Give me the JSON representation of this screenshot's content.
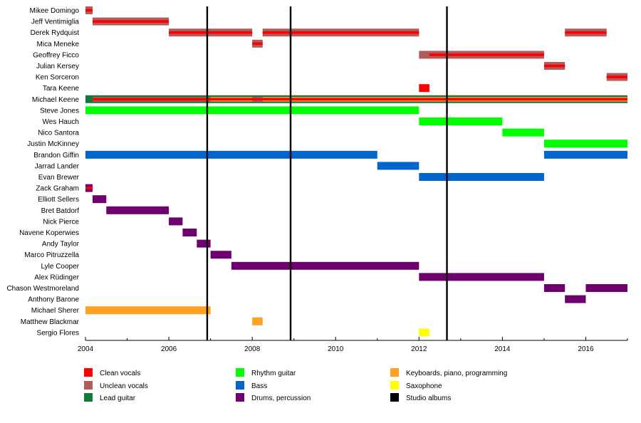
{
  "chart_data": {
    "type": "timeline",
    "xlim": [
      2004,
      2017
    ],
    "x_ticks": [
      2004,
      2006,
      2008,
      2010,
      2012,
      2014,
      2016
    ],
    "members": [
      "Mikee Domingo",
      "Jeff Ventimiglia",
      "Derek Rydquist",
      "Mica Meneke",
      "Geoffrey Ficco",
      "Julian Kersey",
      "Ken Sorceron",
      "Tara Keene",
      "Michael Keene",
      "Steve Jones",
      "Wes Hauch",
      "Nico Santora",
      "Justin McKinney",
      "Brandon Giffin",
      "Jarrad Lander",
      "Evan Brewer",
      "Zack Graham",
      "Elliott Sellers",
      "Bret Batdorf",
      "Nick Pierce",
      "Navene Koperwies",
      "Andy Taylor",
      "Marco Pitruzzella",
      "Lyle Cooper",
      "Alex Rüdinger",
      "Chason Westmoreland",
      "Anthony Barone",
      "Michael Sherer",
      "Matthew Blackmar",
      "Sergio Flores"
    ],
    "roles": [
      {
        "key": "clean",
        "label": "Clean vocals",
        "color": "#ff0000"
      },
      {
        "key": "unclean",
        "label": "Unclean vocals",
        "color": "#b35a5a"
      },
      {
        "key": "lead",
        "label": "Lead guitar",
        "color": "#117a3b"
      },
      {
        "key": "rhythm",
        "label": "Rhythm guitar",
        "color": "#00ff00"
      },
      {
        "key": "bass",
        "label": "Bass",
        "color": "#0066cc"
      },
      {
        "key": "drums",
        "label": "Drums, percussion",
        "color": "#6e016e"
      },
      {
        "key": "keys",
        "label": "Keyboards, piano, programming",
        "color": "#ffa020"
      },
      {
        "key": "sax",
        "label": "Saxophone",
        "color": "#ffff00"
      },
      {
        "key": "albums",
        "label": "Studio albums",
        "color": "#000000"
      }
    ],
    "bars": [
      {
        "member": 0,
        "role": "unclean",
        "start": 2004.0,
        "end": 2004.17
      },
      {
        "member": 0,
        "role": "clean",
        "start": 2004.0,
        "end": 2004.17,
        "inner": true
      },
      {
        "member": 1,
        "role": "unclean",
        "start": 2004.17,
        "end": 2006.0
      },
      {
        "member": 1,
        "role": "clean",
        "start": 2004.17,
        "end": 2006.0,
        "inner": true
      },
      {
        "member": 2,
        "role": "unclean",
        "start": 2006.0,
        "end": 2008.0
      },
      {
        "member": 2,
        "role": "clean",
        "start": 2006.0,
        "end": 2008.0,
        "inner": true
      },
      {
        "member": 2,
        "role": "unclean",
        "start": 2008.25,
        "end": 2012.0
      },
      {
        "member": 2,
        "role": "clean",
        "start": 2008.25,
        "end": 2012.0,
        "inner": true
      },
      {
        "member": 2,
        "role": "unclean",
        "start": 2015.5,
        "end": 2016.5
      },
      {
        "member": 2,
        "role": "clean",
        "start": 2015.5,
        "end": 2016.5,
        "inner": true
      },
      {
        "member": 3,
        "role": "unclean",
        "start": 2008.0,
        "end": 2008.25
      },
      {
        "member": 3,
        "role": "clean",
        "start": 2008.0,
        "end": 2008.25,
        "inner": true
      },
      {
        "member": 4,
        "role": "unclean",
        "start": 2012.0,
        "end": 2015.0
      },
      {
        "member": 4,
        "role": "clean",
        "start": 2012.25,
        "end": 2015.0,
        "inner": true
      },
      {
        "member": 5,
        "role": "unclean",
        "start": 2015.0,
        "end": 2015.5
      },
      {
        "member": 5,
        "role": "clean",
        "start": 2015.0,
        "end": 2015.5,
        "inner": true
      },
      {
        "member": 6,
        "role": "unclean",
        "start": 2016.5,
        "end": 2017.0
      },
      {
        "member": 6,
        "role": "clean",
        "start": 2016.5,
        "end": 2017.0,
        "inner": true
      },
      {
        "member": 7,
        "role": "clean",
        "start": 2012.0,
        "end": 2012.25
      },
      {
        "member": 8,
        "role": "lead",
        "start": 2004.0,
        "end": 2017.0
      },
      {
        "member": 8,
        "role": "unclean",
        "start": 2004.17,
        "end": 2007.0,
        "band": "mid"
      },
      {
        "member": 8,
        "role": "keys",
        "start": 2007.0,
        "end": 2017.0,
        "band": "mid"
      },
      {
        "member": 8,
        "role": "unclean",
        "start": 2008.0,
        "end": 2008.25,
        "band": "mid"
      },
      {
        "member": 8,
        "role": "clean",
        "start": 2004.17,
        "end": 2017.0,
        "inner": true
      },
      {
        "member": 9,
        "role": "rhythm",
        "start": 2004.0,
        "end": 2012.0
      },
      {
        "member": 10,
        "role": "rhythm",
        "start": 2012.0,
        "end": 2014.0
      },
      {
        "member": 11,
        "role": "rhythm",
        "start": 2014.0,
        "end": 2015.0
      },
      {
        "member": 12,
        "role": "rhythm",
        "start": 2015.0,
        "end": 2017.0
      },
      {
        "member": 13,
        "role": "bass",
        "start": 2004.0,
        "end": 2011.0
      },
      {
        "member": 13,
        "role": "bass",
        "start": 2015.0,
        "end": 2017.0
      },
      {
        "member": 14,
        "role": "bass",
        "start": 2011.0,
        "end": 2012.0
      },
      {
        "member": 15,
        "role": "bass",
        "start": 2012.0,
        "end": 2015.0
      },
      {
        "member": 16,
        "role": "drums",
        "start": 2004.0,
        "end": 2004.17
      },
      {
        "member": 16,
        "role": "clean",
        "start": 2004.0,
        "end": 2004.17,
        "inner": true
      },
      {
        "member": 17,
        "role": "drums",
        "start": 2004.17,
        "end": 2004.5
      },
      {
        "member": 18,
        "role": "drums",
        "start": 2004.5,
        "end": 2006.0
      },
      {
        "member": 19,
        "role": "drums",
        "start": 2006.0,
        "end": 2006.33
      },
      {
        "member": 20,
        "role": "drums",
        "start": 2006.33,
        "end": 2006.67
      },
      {
        "member": 21,
        "role": "drums",
        "start": 2006.67,
        "end": 2007.0
      },
      {
        "member": 22,
        "role": "drums",
        "start": 2007.0,
        "end": 2007.5
      },
      {
        "member": 23,
        "role": "drums",
        "start": 2007.5,
        "end": 2012.0
      },
      {
        "member": 24,
        "role": "drums",
        "start": 2012.0,
        "end": 2015.0
      },
      {
        "member": 25,
        "role": "drums",
        "start": 2015.0,
        "end": 2015.5
      },
      {
        "member": 25,
        "role": "drums",
        "start": 2016.0,
        "end": 2017.0
      },
      {
        "member": 26,
        "role": "drums",
        "start": 2015.5,
        "end": 2016.0
      },
      {
        "member": 27,
        "role": "keys",
        "start": 2004.0,
        "end": 2007.0
      },
      {
        "member": 28,
        "role": "keys",
        "start": 2008.0,
        "end": 2008.25
      },
      {
        "member": 29,
        "role": "sax",
        "start": 2012.0,
        "end": 2012.25
      }
    ],
    "album_lines": [
      2006.92,
      2008.92,
      2012.67
    ]
  }
}
